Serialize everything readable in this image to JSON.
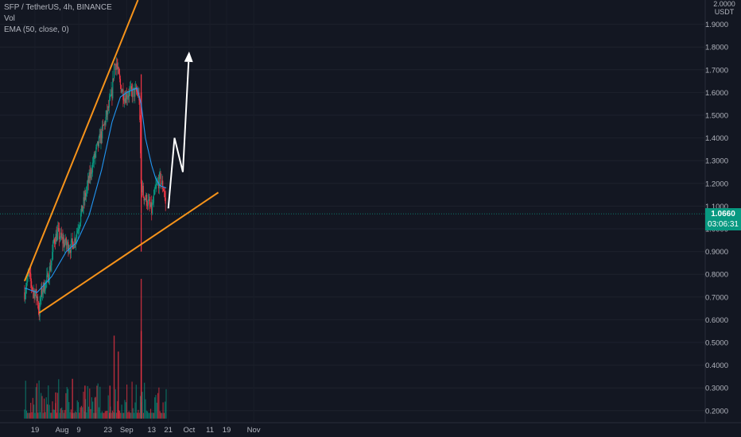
{
  "legend": {
    "symbol": "SFP / TetherUS, 4h, BINANCE",
    "volume": "Vol",
    "ema": "EMA (50, close, 0)"
  },
  "price_axis": {
    "top_label": "2.0000",
    "currency": "USDT",
    "current_price": "1.0660",
    "countdown": "03:06:31"
  },
  "colors": {
    "background": "#131722",
    "up": "#089981",
    "down": "#f23645",
    "trendline": "#f7931a",
    "ema": "#2196f3",
    "projection": "#ffffff",
    "axis_text": "#b2b5be"
  },
  "chart_data": {
    "type": "candlestick",
    "symbol": "SFP / TetherUS",
    "interval": "4h",
    "exchange": "BINANCE",
    "y_ticks": [
      "1.9000",
      "1.8000",
      "1.7000",
      "1.6000",
      "1.5000",
      "1.4000",
      "1.3000",
      "1.2000",
      "1.1000",
      "1.0000",
      "0.9000",
      "0.8000",
      "0.7000",
      "0.6000",
      "0.5000",
      "0.4000",
      "0.3000",
      "0.2000"
    ],
    "ylim": [
      0.17,
      2.02
    ],
    "x_ticks": [
      "19",
      "Aug",
      "9",
      "23",
      "Sep",
      "13",
      "21",
      "Oct",
      "11",
      "19",
      "Nov"
    ],
    "x_tick_dates": [
      "2021-07-19",
      "2021-08-01",
      "2021-08-09",
      "2021-08-23",
      "2021-09-01",
      "2021-09-13",
      "2021-09-21",
      "2021-10-01",
      "2021-10-11",
      "2021-10-19",
      "2021-11-01"
    ],
    "current_price": 1.066,
    "price_path": [
      [
        "2021-07-14",
        0.72
      ],
      [
        "2021-07-16",
        0.8
      ],
      [
        "2021-07-18",
        0.73
      ],
      [
        "2021-07-20",
        0.7
      ],
      [
        "2021-07-21",
        0.63
      ],
      [
        "2021-07-22",
        0.72
      ],
      [
        "2021-07-25",
        0.78
      ],
      [
        "2021-07-27",
        0.86
      ],
      [
        "2021-07-28",
        0.95
      ],
      [
        "2021-07-30",
        0.98
      ],
      [
        "2021-08-01",
        0.95
      ],
      [
        "2021-08-03",
        0.93
      ],
      [
        "2021-08-05",
        0.92
      ],
      [
        "2021-08-07",
        0.95
      ],
      [
        "2021-08-09",
        1.02
      ],
      [
        "2021-08-11",
        1.1
      ],
      [
        "2021-08-13",
        1.18
      ],
      [
        "2021-08-15",
        1.26
      ],
      [
        "2021-08-17",
        1.33
      ],
      [
        "2021-08-19",
        1.39
      ],
      [
        "2021-08-21",
        1.45
      ],
      [
        "2021-08-23",
        1.52
      ],
      [
        "2021-08-25",
        1.6
      ],
      [
        "2021-08-26",
        1.72
      ],
      [
        "2021-08-27",
        1.73
      ],
      [
        "2021-08-28",
        1.68
      ],
      [
        "2021-08-29",
        1.63
      ],
      [
        "2021-08-31",
        1.58
      ],
      [
        "2021-09-02",
        1.6
      ],
      [
        "2021-09-04",
        1.6
      ],
      [
        "2021-09-06",
        1.6
      ],
      [
        "2021-09-07",
        1.58
      ],
      [
        "2021-09-08",
        1.2
      ],
      [
        "2021-09-09",
        1.15
      ],
      [
        "2021-09-11",
        1.12
      ],
      [
        "2021-09-13",
        1.08
      ],
      [
        "2021-09-15",
        1.18
      ],
      [
        "2021-09-17",
        1.22
      ],
      [
        "2021-09-19",
        1.17
      ],
      [
        "2021-09-20",
        1.07
      ]
    ],
    "ema_path": [
      [
        "2021-07-14",
        0.74
      ],
      [
        "2021-07-20",
        0.72
      ],
      [
        "2021-07-27",
        0.79
      ],
      [
        "2021-08-03",
        0.9
      ],
      [
        "2021-08-08",
        0.94
      ],
      [
        "2021-08-14",
        1.06
      ],
      [
        "2021-08-20",
        1.26
      ],
      [
        "2021-08-25",
        1.47
      ],
      [
        "2021-08-29",
        1.58
      ],
      [
        "2021-09-01",
        1.6
      ],
      [
        "2021-09-06",
        1.62
      ],
      [
        "2021-09-08",
        1.55
      ],
      [
        "2021-09-10",
        1.4
      ],
      [
        "2021-09-13",
        1.28
      ],
      [
        "2021-09-15",
        1.22
      ],
      [
        "2021-09-17",
        1.19
      ],
      [
        "2021-09-20",
        1.18
      ]
    ],
    "volume_scale": "relative",
    "volume_spikes": [
      [
        "2021-07-29",
        0.28
      ],
      [
        "2021-08-06",
        0.34
      ],
      [
        "2021-08-12",
        0.31
      ],
      [
        "2021-08-17",
        0.26
      ],
      [
        "2021-08-24",
        0.31
      ],
      [
        "2021-08-26",
        0.53
      ],
      [
        "2021-08-28",
        0.46
      ],
      [
        "2021-09-08",
        0.55
      ],
      [
        "2021-09-08",
        0.78
      ]
    ],
    "annotations": {
      "upper_trendline": [
        [
          "2021-07-14",
          0.77
        ],
        [
          "2021-08-27",
          1.77
        ]
      ],
      "lower_trendline": [
        [
          "2021-07-21",
          0.63
        ],
        [
          "2021-10-15",
          1.16
        ]
      ],
      "projection_arrow": [
        [
          "2021-09-21",
          1.09
        ],
        [
          "2021-09-24",
          1.4
        ],
        [
          "2021-09-28",
          1.25
        ],
        [
          "2021-10-01",
          1.78
        ]
      ]
    }
  }
}
